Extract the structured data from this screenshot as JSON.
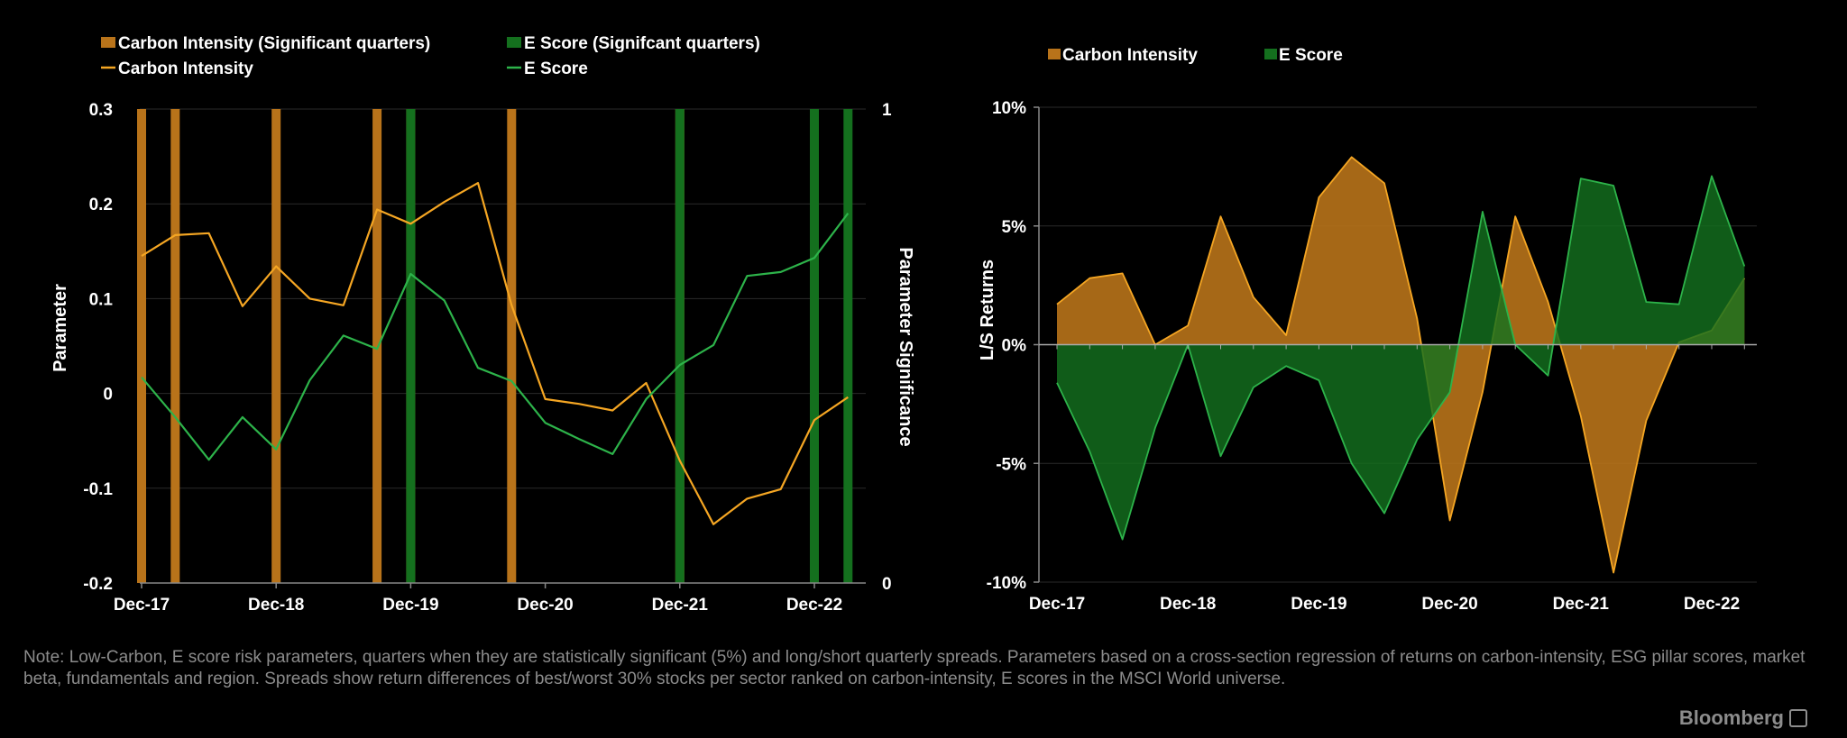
{
  "chart_data": [
    {
      "type": "line",
      "title": "",
      "xlabel": "",
      "ylabel": "Parameter",
      "y2label": "Parameter Significance",
      "ylim": [
        -0.2,
        0.3
      ],
      "y2lim": [
        0,
        1
      ],
      "y_ticks": [
        -0.2,
        -0.1,
        0,
        0.1,
        0.2,
        0.3
      ],
      "y_tick_labels": [
        "-0.2",
        "-0.1",
        "0",
        "0.1",
        "0.2",
        "0.3"
      ],
      "y2_ticks": [
        0,
        1
      ],
      "y2_tick_labels": [
        "0",
        "1"
      ],
      "x_ticks": [
        "Dec-17",
        "Dec-18",
        "Dec-19",
        "Dec-20",
        "Dec-21",
        "Dec-22"
      ],
      "legend_placement": "top-left",
      "grid": true,
      "x": [
        "Dec-17",
        "Mar-18",
        "Jun-18",
        "Sep-18",
        "Dec-18",
        "Mar-19",
        "Jun-19",
        "Sep-19",
        "Dec-19",
        "Mar-20",
        "Jun-20",
        "Sep-20",
        "Dec-20",
        "Mar-21",
        "Jun-21",
        "Sep-21",
        "Dec-21",
        "Mar-22",
        "Jun-22",
        "Sep-22",
        "Dec-22",
        "Mar-23"
      ],
      "series": [
        {
          "name": "Carbon Intensity",
          "kind": "line",
          "color": "#f5a623",
          "values": [
            0.145,
            0.167,
            0.169,
            0.092,
            0.134,
            0.1,
            0.093,
            0.194,
            0.179,
            0.202,
            0.222,
            0.093,
            -0.006,
            -0.011,
            -0.018,
            0.011,
            -0.071,
            -0.138,
            -0.111,
            -0.101,
            -0.028,
            -0.004
          ]
        },
        {
          "name": "E Score",
          "kind": "line",
          "color": "#2db34a",
          "values": [
            0.017,
            -0.025,
            -0.07,
            -0.025,
            -0.059,
            0.014,
            0.061,
            0.047,
            0.126,
            0.098,
            0.027,
            0.013,
            -0.031,
            -0.048,
            -0.064,
            -0.006,
            0.03,
            0.051,
            0.124,
            0.128,
            0.143,
            0.19
          ]
        },
        {
          "name": "Carbon Intensity (Significant quarters)",
          "kind": "bar",
          "axis": "y2",
          "color": "#b8731a",
          "values": [
            1,
            1,
            0,
            0,
            1,
            0,
            0,
            1,
            1,
            0,
            0,
            1,
            0,
            0,
            0,
            0,
            1,
            0,
            0,
            0,
            0,
            0
          ]
        },
        {
          "name": "E Score (Signifcant quarters)",
          "kind": "bar",
          "axis": "y2",
          "color": "#14701e",
          "values": [
            0,
            0,
            0,
            0,
            0,
            0,
            0,
            0,
            1,
            0,
            0,
            0,
            0,
            0,
            0,
            0,
            1,
            0,
            0,
            0,
            1,
            1
          ]
        }
      ]
    },
    {
      "type": "area",
      "title": "",
      "xlabel": "",
      "ylabel": "L/S Returns",
      "ylim": [
        -10,
        10
      ],
      "y_ticks": [
        -10,
        -5,
        0,
        5,
        10
      ],
      "y_tick_labels": [
        "-10%",
        "-5%",
        "0%",
        "5%",
        "10%"
      ],
      "x_ticks": [
        "Dec-17",
        "Dec-18",
        "Dec-19",
        "Dec-20",
        "Dec-21",
        "Dec-22"
      ],
      "legend_placement": "top-left",
      "grid": true,
      "x": [
        "Dec-17",
        "Mar-18",
        "Jun-18",
        "Sep-18",
        "Dec-18",
        "Mar-19",
        "Jun-19",
        "Sep-19",
        "Dec-19",
        "Mar-20",
        "Jun-20",
        "Sep-20",
        "Dec-20",
        "Mar-21",
        "Jun-21",
        "Sep-21",
        "Dec-21",
        "Mar-22",
        "Jun-22",
        "Sep-22",
        "Dec-22",
        "Mar-23"
      ],
      "series": [
        {
          "name": "Carbon Intensity",
          "color": "#b8731a",
          "line_color": "#f5a623",
          "values": [
            1.7,
            2.8,
            3.0,
            0.0,
            0.8,
            5.4,
            2.0,
            0.4,
            6.2,
            7.9,
            6.8,
            1.1,
            -7.4,
            -2.0,
            5.4,
            1.8,
            -3.0,
            -9.6,
            -3.2,
            0.1,
            0.6,
            2.8
          ]
        },
        {
          "name": "E Score",
          "color": "#14701e",
          "line_color": "#2db34a",
          "values": [
            -1.6,
            -4.5,
            -8.2,
            -3.5,
            0.0,
            -4.7,
            -1.8,
            -0.9,
            -1.5,
            -5.0,
            -7.1,
            -4.0,
            -2.0,
            5.6,
            0.0,
            -1.3,
            7.0,
            6.7,
            1.8,
            1.7,
            7.1,
            3.3
          ]
        }
      ]
    }
  ],
  "note": "Note: Low-Carbon, E score risk parameters, quarters when they are statistically significant (5%) and long/short quarterly spreads. Parameters based on a cross-section regression of returns on carbon-intensity, ESG pillar scores, market beta, fundamentals and region. Spreads show return differences of best/worst 30% stocks per sector ranked on carbon-intensity, E scores in the MSCI World universe.",
  "brand": "Bloomberg",
  "brand_icon": "bloomberg-chart-icon"
}
